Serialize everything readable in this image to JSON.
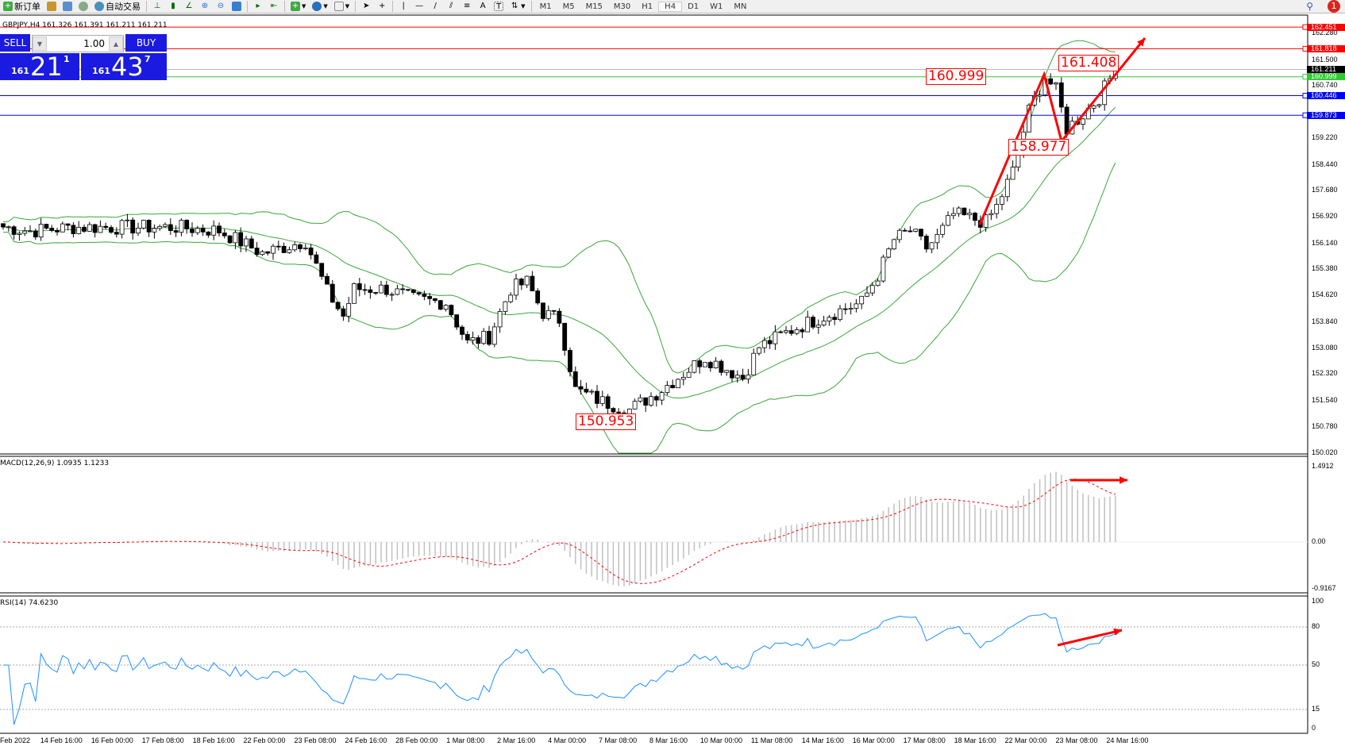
{
  "toolbar": {
    "new_order": "新订单",
    "auto_trading": "自动交易",
    "timeframes": [
      "M1",
      "M5",
      "M15",
      "M30",
      "H1",
      "H4",
      "D1",
      "W1",
      "MN"
    ],
    "active_timeframe": "H4",
    "notifications": "1"
  },
  "chart": {
    "header": "GBPJPY,H4  161.326 161.391 161.211 161.211",
    "symbol": "GBPJPY",
    "timeframe": "H4"
  },
  "trade_panel": {
    "sell_label": "SELL",
    "buy_label": "BUY",
    "lot": "1.00",
    "sell_small": "161",
    "sell_big": "21",
    "sell_pip": "1",
    "buy_small": "161",
    "buy_big": "43",
    "buy_pip": "7"
  },
  "price_axis": [
    "162.280",
    "161.500",
    "160.740",
    "159.220",
    "158.440",
    "157.680",
    "156.920",
    "156.140",
    "155.380",
    "154.620",
    "153.840",
    "153.080",
    "152.320",
    "151.540",
    "150.780",
    "150.020"
  ],
  "hlines": [
    {
      "price": "162.451",
      "color": "#ff0000"
    },
    {
      "price": "161.818",
      "color": "#ff0000"
    },
    {
      "price": "161.211",
      "color": "#000000"
    },
    {
      "price": "160.999",
      "color": "#32c832"
    },
    {
      "price": "160.446",
      "color": "#0000ff"
    },
    {
      "price": "159.873",
      "color": "#0000ff"
    }
  ],
  "annotations": [
    "160.999",
    "161.408",
    "158.977",
    "150.953"
  ],
  "macd": {
    "label": "MACD(12,26,9) 1.0935 1.1233",
    "axis": [
      "1.4912",
      "0.00",
      "-0.9167"
    ],
    "range": [
      -0.9167,
      1.4912
    ]
  },
  "rsi": {
    "label": "RSI(14) 74.6230",
    "axis": [
      "100",
      "80",
      "50",
      "15",
      "0"
    ],
    "levels": [
      80,
      50,
      15
    ]
  },
  "time_axis": [
    "Feb 2022",
    "14 Feb 16:00",
    "16 Feb 00:00",
    "17 Feb 08:00",
    "18 Feb 16:00",
    "22 Feb 00:00",
    "23 Feb 08:00",
    "24 Feb 16:00",
    "28 Feb 00:00",
    "1 Mar 08:00",
    "2 Mar 16:00",
    "4 Mar 00:00",
    "7 Mar 08:00",
    "8 Mar 16:00",
    "10 Mar 00:00",
    "11 Mar 08:00",
    "14 Mar 16:00",
    "16 Mar 00:00",
    "17 Mar 08:00",
    "18 Mar 16:00",
    "22 Mar 00:00",
    "23 Mar 08:00",
    "24 Mar 16:00"
  ],
  "colors": {
    "bands": "#3aa63a",
    "arrows": "#ff0000",
    "rsi_line": "#1e90ff",
    "panel_blue": "#1a1ae0"
  },
  "chart_data": {
    "type": "candlestick",
    "indicators": [
      "Bollinger Bands",
      "MACD(12,26,9)",
      "RSI(14)"
    ],
    "ylim": [
      150.02,
      162.45
    ],
    "close_path": [
      [
        0,
        156.61
      ],
      [
        5,
        156.49
      ],
      [
        13,
        156.6
      ],
      [
        24,
        156.6
      ],
      [
        32,
        156.6
      ],
      [
        40,
        156.5
      ],
      [
        48,
        155.84
      ],
      [
        56,
        156.2
      ],
      [
        60,
        154.73
      ],
      [
        63,
        154.0
      ],
      [
        65,
        154.8
      ],
      [
        71,
        154.8
      ],
      [
        76,
        154.5
      ],
      [
        82,
        154.4
      ],
      [
        86,
        153.22
      ],
      [
        90,
        153.4
      ],
      [
        94,
        154.8
      ],
      [
        97,
        155.0
      ],
      [
        100,
        154.1
      ],
      [
        103,
        153.9
      ],
      [
        106,
        151.85
      ],
      [
        111,
        151.5
      ],
      [
        116,
        151.27
      ],
      [
        121,
        151.75
      ],
      [
        125,
        152.22
      ],
      [
        130,
        152.8
      ],
      [
        137,
        152.2
      ],
      [
        140,
        153.1
      ],
      [
        146,
        153.6
      ],
      [
        152,
        154.0
      ],
      [
        159,
        154.4
      ],
      [
        162,
        155.2
      ],
      [
        165,
        156.24
      ],
      [
        168,
        156.5
      ],
      [
        171,
        156.0
      ],
      [
        173,
        156.3
      ],
      [
        176,
        156.98
      ],
      [
        182,
        156.75
      ],
      [
        184,
        157.2
      ],
      [
        187,
        158.23
      ],
      [
        190,
        160.0
      ],
      [
        193,
        161.0
      ],
      [
        195,
        160.6
      ],
      [
        197,
        159.48
      ],
      [
        200,
        159.9
      ],
      [
        203,
        160.4
      ],
      [
        206,
        161.211
      ]
    ]
  }
}
